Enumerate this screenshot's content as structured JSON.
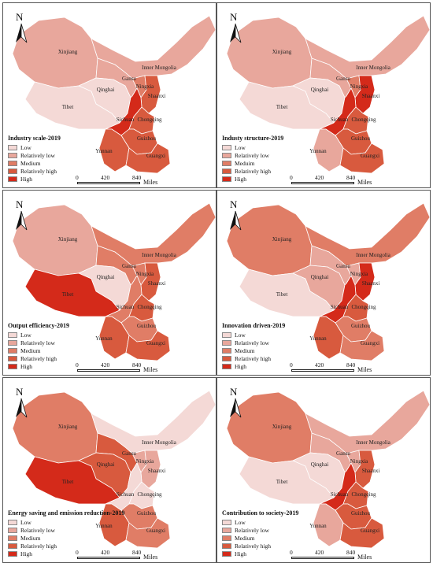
{
  "north_label": "N",
  "scale": {
    "ticks": [
      "0",
      "420",
      "840"
    ],
    "unit": "Miles"
  },
  "legend_colors": {
    "Low": "#f4d9d6",
    "Relatively low": "#e8a79c",
    "Medium": "#e07d66",
    "Relatively high": "#d85a3e",
    "High": "#d42a1a"
  },
  "region_names": [
    "Xinjiang",
    "Inner Mongolia",
    "Gansu",
    "Ningxia",
    "Shaanxi",
    "Qinghai",
    "Tibet",
    "Sichuan",
    "Chongqing",
    "Guizhou",
    "Yunnan",
    "Guangxi"
  ],
  "panels": [
    {
      "title": "Industry scale-2019",
      "legend_labels": [
        "Low",
        "Relatively low",
        "Medium",
        "Relatively high",
        "High"
      ],
      "levels": {
        "Xinjiang": "Relatively low",
        "Inner Mongolia": "Relatively low",
        "Gansu": "Relatively low",
        "Ningxia": "Medium",
        "Shaanxi": "Relatively high",
        "Qinghai": "Low",
        "Tibet": "Low",
        "Sichuan": "High",
        "Chongqing": "Relatively high",
        "Guizhou": "Relatively high",
        "Yunnan": "Relatively high",
        "Guangxi": "Relatively high"
      }
    },
    {
      "title": "Industy structure-2019",
      "legend_labels": [
        "Low",
        "Relatively low",
        "Meduim",
        "Relatively high",
        "High"
      ],
      "levels": {
        "Xinjiang": "Relatively low",
        "Inner Mongolia": "Relatively low",
        "Gansu": "Relatively low",
        "Ningxia": "Medium",
        "Shaanxi": "High",
        "Qinghai": "Low",
        "Tibet": "Low",
        "Sichuan": "High",
        "Chongqing": "Relatively high",
        "Guizhou": "Relatively high",
        "Yunnan": "Relatively low",
        "Guangxi": "Relatively high"
      }
    },
    {
      "title": "Output efficiency-2019",
      "legend_labels": [
        "Low",
        "Relatively low",
        "Medium",
        "Relatively high",
        "High"
      ],
      "levels": {
        "Xinjiang": "Relatively low",
        "Inner Mongolia": "Medium",
        "Gansu": "Medium",
        "Ningxia": "Medium",
        "Shaanxi": "Relatively high",
        "Qinghai": "Low",
        "Tibet": "High",
        "Sichuan": "Medium",
        "Chongqing": "Relatively high",
        "Guizhou": "Medium",
        "Yunnan": "Relatively high",
        "Guangxi": "Relatively high"
      }
    },
    {
      "title": "Innovation driven-2019",
      "legend_labels": [
        "Low",
        "Relatively low",
        "Medium",
        "Relatively high",
        "High"
      ],
      "levels": {
        "Xinjiang": "Medium",
        "Inner Mongolia": "Medium",
        "Gansu": "Relatively low",
        "Ningxia": "Relatively low",
        "Shaanxi": "High",
        "Qinghai": "Relatively low",
        "Tibet": "Low",
        "Sichuan": "High",
        "Chongqing": "Relatively high",
        "Guizhou": "Medium",
        "Yunnan": "Relatively high",
        "Guangxi": "Medium"
      }
    },
    {
      "title": "Energy saving and emission reduction-2019",
      "legend_labels": [
        "Low",
        "Relatively low",
        "Medium",
        "Relatively high",
        "High"
      ],
      "levels": {
        "Xinjiang": "Medium",
        "Inner Mongolia": "Low",
        "Gansu": "Relatively high",
        "Ningxia": "Relatively low",
        "Shaanxi": "Relatively low",
        "Qinghai": "Relatively high",
        "Tibet": "High",
        "Sichuan": "Low",
        "Chongqing": "Low",
        "Guizhou": "Medium",
        "Yunnan": "Relatively high",
        "Guangxi": "Medium"
      }
    },
    {
      "title": "Contribution to society-2019",
      "legend_labels": [
        "Low",
        "Relatively low",
        "Medium",
        "Relatively high",
        "High"
      ],
      "levels": {
        "Xinjiang": "Medium",
        "Inner Mongolia": "Relatively low",
        "Gansu": "Relatively low",
        "Ningxia": "Relatively low",
        "Shaanxi": "Relatively high",
        "Qinghai": "Low",
        "Tibet": "Low",
        "Sichuan": "High",
        "Chongqing": "Relatively high",
        "Guizhou": "Relatively high",
        "Yunnan": "Relatively low",
        "Guangxi": "Relatively high"
      }
    }
  ]
}
